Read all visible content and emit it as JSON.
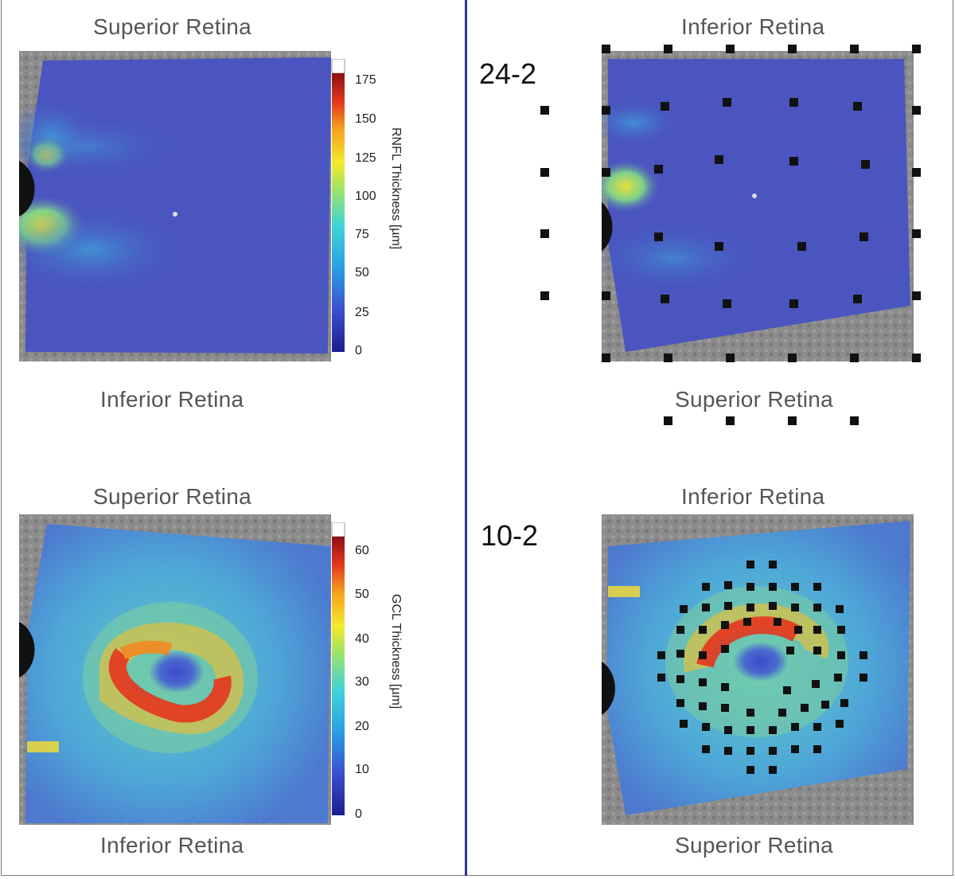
{
  "panels": {
    "rnfl": {
      "top_label": "Superior Retina",
      "bottom_label": "Inferior Retina",
      "colorbar": {
        "title": "RNFL Thickness [µm]",
        "ticks": [
          "175",
          "150",
          "125",
          "100",
          "75",
          "50",
          "25",
          "0"
        ],
        "min": 0,
        "max": 175
      }
    },
    "gcl": {
      "top_label": "Superior Retina",
      "bottom_label": "Inferior Retina",
      "colorbar": {
        "title": "GCL Thickness [µm]",
        "ticks": [
          "60",
          "50",
          "40",
          "30",
          "20",
          "10",
          "0"
        ],
        "min": 0,
        "max": 65
      }
    },
    "grid_24_2": {
      "grid_label": "24-2",
      "top_label": "Inferior Retina",
      "bottom_label": "Superior Retina"
    },
    "grid_10_2": {
      "grid_label": "10-2",
      "top_label": "Inferior Retina",
      "bottom_label": "Superior Retina"
    }
  },
  "colors": {
    "divider": "#2c3590",
    "map_base_blue": "#4a55c0",
    "colormap": [
      "#1b1d8f",
      "#3a4fd0",
      "#2a9ee6",
      "#3fd3d8",
      "#9be36a",
      "#f4ea2a",
      "#f5a020",
      "#e4361e",
      "#8a0f14"
    ]
  }
}
